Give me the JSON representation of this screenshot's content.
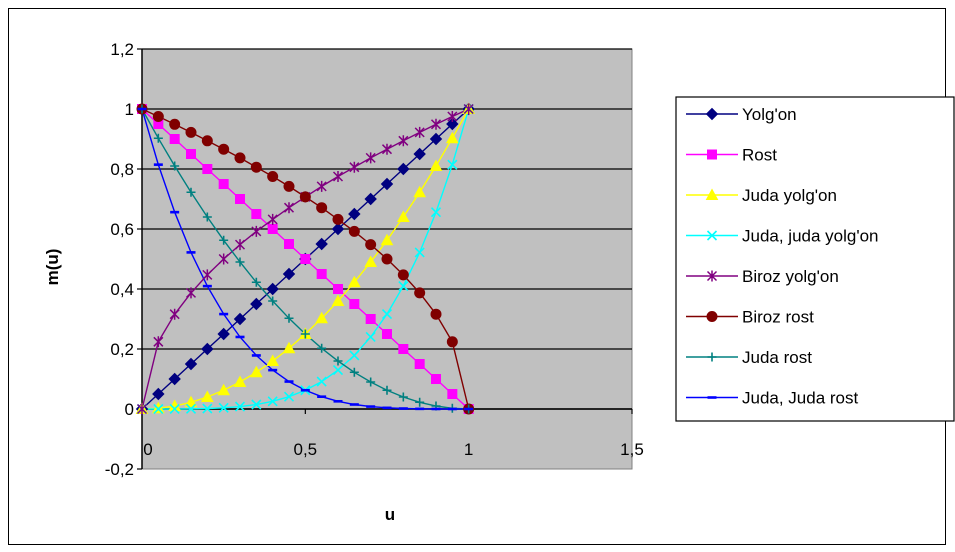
{
  "chart_data": {
    "type": "line",
    "xlabel": "u",
    "ylabel": "m(u)",
    "xlim": [
      0,
      1.5
    ],
    "ylim": [
      -0.2,
      1.2
    ],
    "xticks": [
      "0",
      "0,5",
      "1",
      "1,5"
    ],
    "yticks": [
      "-0,2",
      "0",
      "0,2",
      "0,4",
      "0,6",
      "0,8",
      "1",
      "1,2"
    ],
    "grid": "horizontal",
    "legend_position": "right",
    "plot_background": "#c0c0c0",
    "u": [
      0,
      0.05,
      0.1,
      0.15,
      0.2,
      0.25,
      0.3,
      0.35,
      0.4,
      0.45,
      0.5,
      0.55,
      0.6,
      0.65,
      0.7,
      0.75,
      0.8,
      0.85,
      0.9,
      0.95,
      1
    ],
    "series": [
      {
        "name": "Yolg'on",
        "color": "#000080",
        "marker": "diamond",
        "values": [
          0,
          0.05,
          0.1,
          0.15,
          0.2,
          0.25,
          0.3,
          0.35,
          0.4,
          0.45,
          0.5,
          0.55,
          0.6,
          0.65,
          0.7,
          0.75,
          0.8,
          0.85,
          0.9,
          0.95,
          1
        ]
      },
      {
        "name": "Rost",
        "color": "#ff00ff",
        "marker": "square",
        "values": [
          1,
          0.95,
          0.9,
          0.85,
          0.8,
          0.75,
          0.7,
          0.65,
          0.6,
          0.55,
          0.5,
          0.45,
          0.4,
          0.35,
          0.3,
          0.25,
          0.2,
          0.15,
          0.1,
          0.05,
          0
        ]
      },
      {
        "name": "Juda yolg'on",
        "color": "#ffff00",
        "marker": "triangle",
        "values": [
          0,
          0.0025,
          0.01,
          0.0225,
          0.04,
          0.0625,
          0.09,
          0.1225,
          0.16,
          0.2025,
          0.25,
          0.3025,
          0.36,
          0.4225,
          0.49,
          0.5625,
          0.64,
          0.7225,
          0.81,
          0.9025,
          1
        ]
      },
      {
        "name": "Juda, juda yolg'on",
        "color": "#00ffff",
        "marker": "x",
        "values": [
          0,
          0,
          0.0001,
          0.0005,
          0.0016,
          0.0039,
          0.0081,
          0.015,
          0.0256,
          0.041,
          0.0625,
          0.0915,
          0.1296,
          0.1785,
          0.2401,
          0.3164,
          0.4096,
          0.522,
          0.6561,
          0.8145,
          1
        ]
      },
      {
        "name": "Biroz yolg'on",
        "color": "#800080",
        "marker": "star",
        "values": [
          0,
          0.224,
          0.316,
          0.387,
          0.447,
          0.5,
          0.548,
          0.592,
          0.632,
          0.671,
          0.707,
          0.742,
          0.775,
          0.806,
          0.837,
          0.866,
          0.894,
          0.922,
          0.949,
          0.975,
          1
        ]
      },
      {
        "name": "Biroz rost",
        "color": "#800000",
        "marker": "circle",
        "values": [
          1,
          0.975,
          0.949,
          0.922,
          0.894,
          0.866,
          0.837,
          0.806,
          0.775,
          0.742,
          0.707,
          0.671,
          0.632,
          0.592,
          0.548,
          0.5,
          0.447,
          0.387,
          0.316,
          0.224,
          0
        ]
      },
      {
        "name": "Juda rost",
        "color": "#008080",
        "marker": "plus",
        "values": [
          1,
          0.9025,
          0.81,
          0.7225,
          0.64,
          0.5625,
          0.49,
          0.4225,
          0.36,
          0.3025,
          0.25,
          0.2025,
          0.16,
          0.1225,
          0.09,
          0.0625,
          0.04,
          0.0225,
          0.01,
          0.0025,
          0
        ]
      },
      {
        "name": "Juda, Juda rost",
        "color": "#0000ff",
        "marker": "dash",
        "values": [
          1,
          0.8145,
          0.6561,
          0.522,
          0.4096,
          0.3164,
          0.2401,
          0.1785,
          0.1296,
          0.0915,
          0.0625,
          0.041,
          0.0256,
          0.015,
          0.0081,
          0.0039,
          0.0016,
          0.0005,
          0.0001,
          0,
          0
        ]
      }
    ]
  }
}
